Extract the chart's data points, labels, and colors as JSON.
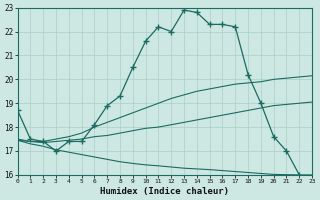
{
  "xlabel": "Humidex (Indice chaleur)",
  "bg_color": "#cde8e2",
  "grid_color": "#aacfc8",
  "line_color": "#1a6b60",
  "xlim": [
    0,
    23
  ],
  "ylim": [
    16,
    23
  ],
  "xticks": [
    0,
    1,
    2,
    3,
    4,
    5,
    6,
    7,
    8,
    9,
    10,
    11,
    12,
    13,
    14,
    15,
    16,
    17,
    18,
    19,
    20,
    21,
    22,
    23
  ],
  "yticks": [
    16,
    17,
    18,
    19,
    20,
    21,
    22,
    23
  ],
  "line1_x": [
    0,
    1,
    2,
    3,
    4,
    5,
    6,
    7,
    8,
    9,
    10,
    11,
    12,
    13,
    14,
    15,
    16,
    17,
    18,
    19,
    20,
    21,
    22
  ],
  "line1_y": [
    18.7,
    17.5,
    17.4,
    17.0,
    17.4,
    17.4,
    18.1,
    18.9,
    19.3,
    20.5,
    21.6,
    22.2,
    22.0,
    22.9,
    22.8,
    22.3,
    22.3,
    22.2,
    20.2,
    19.0,
    17.6,
    17.0,
    16.0
  ],
  "line2_x": [
    0,
    1,
    2,
    3,
    4,
    5,
    6,
    7,
    8,
    9,
    10,
    11,
    12,
    13,
    14,
    15,
    16,
    17,
    18,
    19,
    20,
    21,
    22,
    23
  ],
  "line2_y": [
    17.5,
    17.4,
    17.4,
    17.5,
    17.6,
    17.75,
    18.0,
    18.2,
    18.4,
    18.6,
    18.8,
    19.0,
    19.2,
    19.35,
    19.5,
    19.6,
    19.7,
    19.8,
    19.85,
    19.9,
    20.0,
    20.05,
    20.1,
    20.15
  ],
  "line3_x": [
    0,
    1,
    2,
    3,
    4,
    5,
    6,
    7,
    8,
    9,
    10,
    11,
    12,
    13,
    14,
    15,
    16,
    17,
    18,
    19,
    20,
    21,
    22,
    23
  ],
  "line3_y": [
    17.45,
    17.4,
    17.35,
    17.4,
    17.45,
    17.5,
    17.6,
    17.65,
    17.75,
    17.85,
    17.95,
    18.0,
    18.1,
    18.2,
    18.3,
    18.4,
    18.5,
    18.6,
    18.7,
    18.8,
    18.9,
    18.95,
    19.0,
    19.05
  ],
  "line4_x": [
    0,
    1,
    2,
    3,
    4,
    5,
    6,
    7,
    8,
    9,
    10,
    11,
    12,
    13,
    14,
    15,
    16,
    17,
    18,
    19,
    20,
    21,
    22,
    23
  ],
  "line4_y": [
    17.45,
    17.3,
    17.2,
    17.05,
    16.95,
    16.85,
    16.75,
    16.65,
    16.55,
    16.48,
    16.42,
    16.38,
    16.33,
    16.28,
    16.25,
    16.22,
    16.18,
    16.14,
    16.1,
    16.06,
    16.02,
    16.01,
    16.0,
    16.0
  ]
}
